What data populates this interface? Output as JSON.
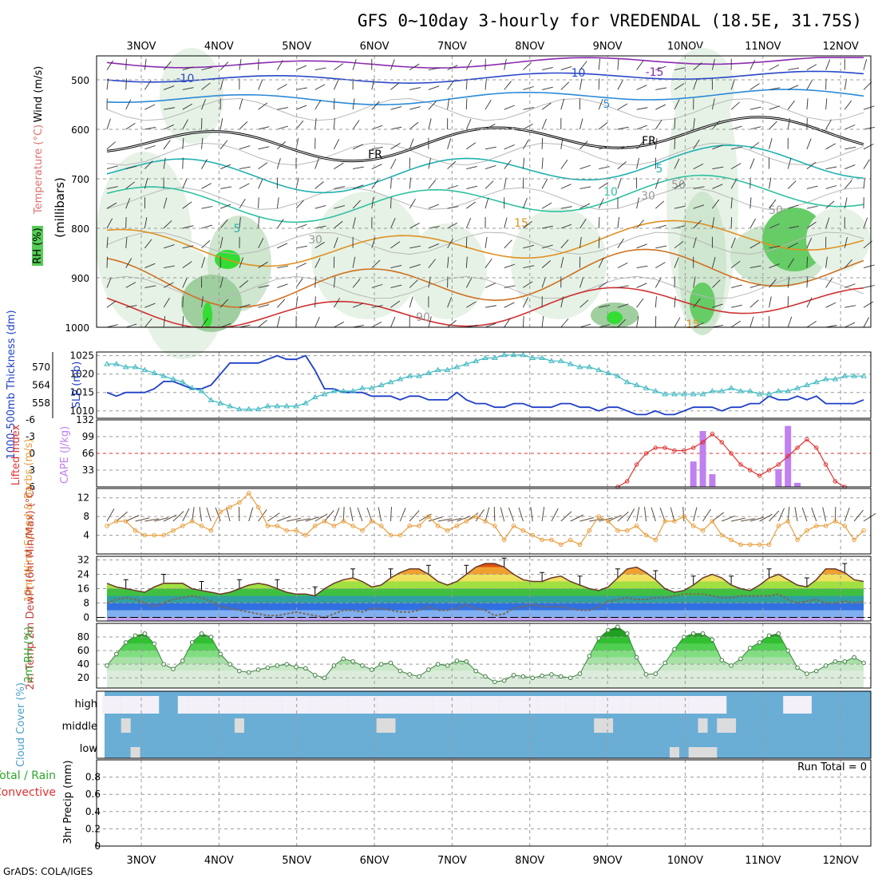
{
  "title": "GFS 0~10day 3-hourly for VREDENDAL (18.5E, 31.75S)",
  "credit": "GrADS: COLA/IGES",
  "date_labels": [
    "3NOV",
    "4NOV",
    "5NOV",
    "6NOV",
    "7NOV",
    "8NOV",
    "9NOV",
    "10NOV",
    "11NOV",
    "12NOV"
  ],
  "colors": {
    "grid": "#9a9a9a",
    "slp": "#1f3fc8",
    "thickness": "#3cb8c0",
    "lifted_index": "#e03030",
    "cape": "#c080f0",
    "wind_speed": "#e8a040",
    "barb": "#5a4a3a",
    "rh": "#2ea62e",
    "cloud": "#6aaed6",
    "cloud_clear": "#f4f0f8",
    "precip_rain": "#2ea62e",
    "precip_conv": "#e03030",
    "temperature": "#e06030",
    "dewpoint": "#7a6a5a"
  },
  "chart_data": [
    {
      "type": "contour",
      "panel": "upper-air",
      "ylabel_parts": [
        "RH (%)",
        "Temperature (°C)",
        "Wind (m/s)"
      ],
      "yaxis_title": "(millibars)",
      "y_ticks": [
        500,
        600,
        700,
        800,
        900,
        1000
      ],
      "contour_labels": [
        "-15",
        "-10",
        "-5",
        "FR",
        "5",
        "10",
        "15",
        "30",
        "50",
        "70",
        "90"
      ]
    },
    {
      "type": "line",
      "panel": "slp-thickness",
      "ylabel_left": "1000-500mb Thickness (dm)",
      "ylabel_right": "SLP (mb)",
      "left_ticks": [
        558,
        564,
        570
      ],
      "right_ticks": [
        1010,
        1015,
        1020,
        1025
      ],
      "ylim_slp": [
        1008,
        1026
      ],
      "ylim_thickness": [
        553,
        575
      ],
      "x": [
        0,
        1,
        2,
        3,
        4,
        5,
        6,
        7,
        8,
        9,
        10,
        11,
        12,
        13,
        14,
        15,
        16,
        17,
        18,
        19,
        20,
        21,
        22,
        23,
        24,
        25,
        26,
        27,
        28,
        29,
        30,
        31,
        32,
        33,
        34,
        35,
        36,
        37,
        38,
        39,
        40,
        41,
        42,
        43,
        44,
        45,
        46,
        47,
        48,
        49,
        50,
        51,
        52,
        53,
        54,
        55,
        56,
        57,
        58,
        59,
        60,
        61,
        62,
        63,
        64,
        65,
        66,
        67,
        68,
        69,
        70,
        71,
        72,
        73,
        74,
        75,
        76,
        77,
        78,
        79,
        80
      ],
      "series": [
        {
          "name": "SLP (mb)",
          "values": [
            1015,
            1014,
            1015,
            1015,
            1015,
            1016,
            1018,
            1018,
            1017,
            1016,
            1016,
            1017,
            1020,
            1023,
            1023,
            1023,
            1023,
            1024,
            1025,
            1024,
            1024,
            1025,
            1021,
            1016,
            1016,
            1015,
            1015,
            1015,
            1014,
            1014,
            1014,
            1013,
            1014,
            1014,
            1013,
            1013,
            1013,
            1015,
            1013,
            1012,
            1012,
            1011,
            1011,
            1012,
            1012,
            1011,
            1011,
            1011,
            1012,
            1012,
            1011,
            1011,
            1010,
            1011,
            1011,
            1010,
            1009,
            1009,
            1010,
            1009,
            1009,
            1010,
            1011,
            1011,
            1011,
            1010,
            1011,
            1011,
            1012,
            1012,
            1014,
            1013,
            1013,
            1014,
            1013,
            1014,
            1012,
            1012,
            1012,
            1012,
            1013
          ]
        },
        {
          "name": "1000-500mb Thickness (dm)",
          "values": [
            571,
            571,
            570,
            570,
            569,
            568,
            567,
            566,
            565,
            563,
            562,
            559,
            558,
            557,
            556,
            556,
            556,
            557,
            557,
            557,
            557,
            558,
            560,
            561,
            562,
            562,
            562,
            563,
            563,
            564,
            565,
            566,
            567,
            567,
            568,
            569,
            569,
            570,
            571,
            572,
            573,
            573,
            574,
            574,
            574,
            573,
            573,
            572,
            572,
            571,
            570,
            570,
            569,
            568,
            567,
            565,
            564,
            563,
            562,
            561,
            561,
            561,
            561,
            561,
            562,
            562,
            563,
            562,
            562,
            561,
            561,
            562,
            562,
            563,
            564,
            565,
            566,
            566,
            567,
            567,
            567
          ]
        }
      ]
    },
    {
      "type": "line",
      "panel": "cape-lifted-index",
      "ylabel_left": "Lifted Index",
      "ylabel_right": "CAPE (J/kg)",
      "li_ticks": [
        "-6",
        "-3",
        "0",
        "3",
        "6"
      ],
      "cape_ticks": [
        33,
        66,
        99,
        132
      ],
      "ylim_cape": [
        0,
        132
      ],
      "ylim_li": [
        -6,
        6
      ],
      "series": [
        {
          "name": "Lifted Index",
          "x": [
            54,
            55,
            56,
            57,
            58,
            59,
            60,
            61,
            62,
            63,
            64,
            65,
            66,
            67,
            68,
            69,
            70,
            71,
            72,
            73,
            74,
            75,
            76,
            77,
            78
          ],
          "values": [
            6,
            5,
            2,
            0,
            -1,
            -1,
            -0.5,
            -0.5,
            -1,
            -2,
            -3.5,
            -2,
            0,
            2,
            3,
            4,
            3,
            2,
            0.5,
            -1,
            -2.5,
            -1,
            2,
            5,
            6
          ]
        },
        {
          "name": "CAPE (J/kg)",
          "type": "bar",
          "x": [
            62,
            63,
            64,
            71,
            72,
            73
          ],
          "values": [
            50,
            110,
            25,
            35,
            120,
            8
          ]
        }
      ]
    },
    {
      "type": "line",
      "panel": "10m-wind",
      "ylabel": "10m Wind Speed & Barbs (m/s)",
      "ticks": [
        4,
        8,
        12
      ],
      "ylim": [
        0,
        14
      ],
      "x": [
        0,
        1,
        2,
        3,
        4,
        5,
        6,
        7,
        8,
        9,
        10,
        11,
        12,
        13,
        14,
        15,
        16,
        17,
        18,
        19,
        20,
        21,
        22,
        23,
        24,
        25,
        26,
        27,
        28,
        29,
        30,
        31,
        32,
        33,
        34,
        35,
        36,
        37,
        38,
        39,
        40,
        41,
        42,
        43,
        44,
        45,
        46,
        47,
        48,
        49,
        50,
        51,
        52,
        53,
        54,
        55,
        56,
        57,
        58,
        59,
        60,
        61,
        62,
        63,
        64,
        65,
        66,
        67,
        68,
        69,
        70,
        71,
        72,
        73,
        74,
        75,
        76,
        77,
        78,
        79,
        80
      ],
      "values": [
        6,
        7,
        7,
        5,
        4,
        4,
        4,
        5,
        6,
        7,
        6,
        5,
        9,
        10,
        11,
        13,
        10,
        6,
        6,
        5,
        5,
        4,
        6,
        7,
        6,
        7,
        6,
        5,
        7,
        6,
        4,
        4,
        6,
        6,
        8,
        6,
        5,
        6,
        7,
        8,
        7,
        6,
        3,
        6,
        5,
        4,
        3,
        3,
        2,
        3,
        2,
        5,
        8,
        7,
        5,
        5,
        6,
        4,
        3,
        7,
        7,
        8,
        6,
        5,
        7,
        4,
        3,
        2,
        2,
        2,
        2,
        6,
        7,
        3,
        5,
        6,
        6,
        7,
        6,
        3,
        5
      ]
    },
    {
      "type": "area",
      "panel": "2m-temp",
      "ylabel": "2m Temp 2m DewPt (6hr Min/Max) (°C)",
      "ticks": [
        0,
        8,
        16,
        24,
        32
      ],
      "ylim": [
        -2,
        34
      ],
      "x": [
        0,
        1,
        2,
        3,
        4,
        5,
        6,
        7,
        8,
        9,
        10,
        11,
        12,
        13,
        14,
        15,
        16,
        17,
        18,
        19,
        20,
        21,
        22,
        23,
        24,
        25,
        26,
        27,
        28,
        29,
        30,
        31,
        32,
        33,
        34,
        35,
        36,
        37,
        38,
        39,
        40,
        41,
        42,
        43,
        44,
        45,
        46,
        47,
        48,
        49,
        50,
        51,
        52,
        53,
        54,
        55,
        56,
        57,
        58,
        59,
        60,
        61,
        62,
        63,
        64,
        65,
        66,
        67,
        68,
        69,
        70,
        71,
        72,
        73,
        74,
        75,
        76,
        77,
        78,
        79,
        80
      ],
      "series": [
        {
          "name": "2m Temp",
          "values": [
            19,
            17,
            16,
            15,
            14,
            17,
            19,
            19,
            19,
            16,
            15,
            14,
            13,
            14,
            16,
            18,
            19,
            18,
            16,
            14,
            13,
            13,
            12,
            16,
            19,
            21,
            22,
            20,
            17,
            18,
            22,
            25,
            27,
            27,
            24,
            20,
            18,
            20,
            24,
            28,
            30,
            30,
            28,
            24,
            21,
            20,
            20,
            22,
            23,
            20,
            18,
            16,
            15,
            17,
            22,
            27,
            28,
            25,
            21,
            16,
            14,
            15,
            18,
            22,
            24,
            22,
            18,
            16,
            15,
            18,
            22,
            24,
            21,
            18,
            17,
            21,
            27,
            27,
            25,
            21,
            20
          ]
        },
        {
          "name": "2m DewPt",
          "values": [
            8,
            10,
            11,
            10,
            8,
            6,
            8,
            10,
            11,
            12,
            11,
            9,
            6,
            5,
            4,
            3,
            2,
            1,
            1,
            2,
            3,
            2,
            1,
            0,
            2,
            4,
            4,
            3,
            5,
            5,
            4,
            3,
            3,
            4,
            6,
            4,
            4,
            5,
            7,
            5,
            4,
            1,
            2,
            5,
            6,
            7,
            6,
            6,
            6,
            5,
            4,
            4,
            6,
            9,
            10,
            11,
            10,
            10,
            11,
            11,
            12,
            13,
            13,
            13,
            12,
            11,
            11,
            12,
            12,
            12,
            12,
            13,
            10,
            8,
            9,
            10,
            8,
            8,
            9,
            8,
            9
          ]
        }
      ]
    },
    {
      "type": "area",
      "panel": "2m-rh",
      "ylabel": "2m RH (%)",
      "ticks": [
        20,
        40,
        60,
        80
      ],
      "ylim": [
        5,
        100
      ],
      "x": [
        0,
        1,
        2,
        3,
        4,
        5,
        6,
        7,
        8,
        9,
        10,
        11,
        12,
        13,
        14,
        15,
        16,
        17,
        18,
        19,
        20,
        21,
        22,
        23,
        24,
        25,
        26,
        27,
        28,
        29,
        30,
        31,
        32,
        33,
        34,
        35,
        36,
        37,
        38,
        39,
        40,
        41,
        42,
        43,
        44,
        45,
        46,
        47,
        48,
        49,
        50,
        51,
        52,
        53,
        54,
        55,
        56,
        57,
        58,
        59,
        60,
        61,
        62,
        63,
        64,
        65,
        66,
        67,
        68,
        69,
        70,
        71,
        72,
        73,
        74,
        75,
        76,
        77,
        78,
        79,
        80
      ],
      "values": [
        38,
        55,
        72,
        82,
        85,
        70,
        40,
        33,
        45,
        72,
        85,
        80,
        55,
        40,
        30,
        28,
        32,
        35,
        38,
        40,
        36,
        34,
        24,
        20,
        38,
        48,
        44,
        38,
        32,
        40,
        42,
        30,
        25,
        22,
        32,
        40,
        38,
        45,
        44,
        30,
        22,
        14,
        16,
        24,
        22,
        20,
        23,
        25,
        22,
        20,
        26,
        52,
        78,
        90,
        95,
        85,
        50,
        25,
        26,
        42,
        62,
        80,
        85,
        85,
        76,
        46,
        38,
        48,
        64,
        72,
        82,
        85,
        60,
        35,
        26,
        30,
        38,
        44,
        44,
        50,
        42
      ]
    },
    {
      "type": "heatmap",
      "panel": "cloud-cover",
      "ylabel": "Cloud Cover (%)",
      "row_labels": [
        "high",
        "middle",
        "low"
      ],
      "high_clear": [
        0,
        1,
        2,
        3,
        4,
        5,
        8,
        9,
        10,
        11,
        12,
        13,
        14,
        15,
        16,
        17,
        18,
        19,
        20,
        21,
        22,
        23,
        24,
        25,
        26,
        27,
        28,
        29,
        30,
        31,
        32,
        33,
        34,
        35,
        36,
        37,
        38,
        39,
        40,
        41,
        42,
        43,
        44,
        45,
        46,
        47,
        48,
        49,
        50,
        51,
        52,
        53,
        54,
        55,
        56,
        57,
        58,
        59,
        60,
        61,
        62,
        63,
        64,
        65,
        72,
        73,
        74
      ],
      "middle_gray": [
        2,
        14,
        29,
        30,
        52,
        53,
        63,
        65,
        66
      ],
      "low_gray": [
        3,
        60,
        62,
        63,
        64
      ]
    },
    {
      "type": "bar",
      "panel": "precip",
      "ylabel_left_parts": [
        "Total / Rain",
        "Convective"
      ],
      "ylabel": "3hr Precip (mm)",
      "ticks": [
        "0",
        "0.2",
        "0.4",
        "0.6",
        "0.8"
      ],
      "ylim": [
        0,
        1
      ],
      "run_total": "Run Total = 0",
      "values": []
    }
  ]
}
